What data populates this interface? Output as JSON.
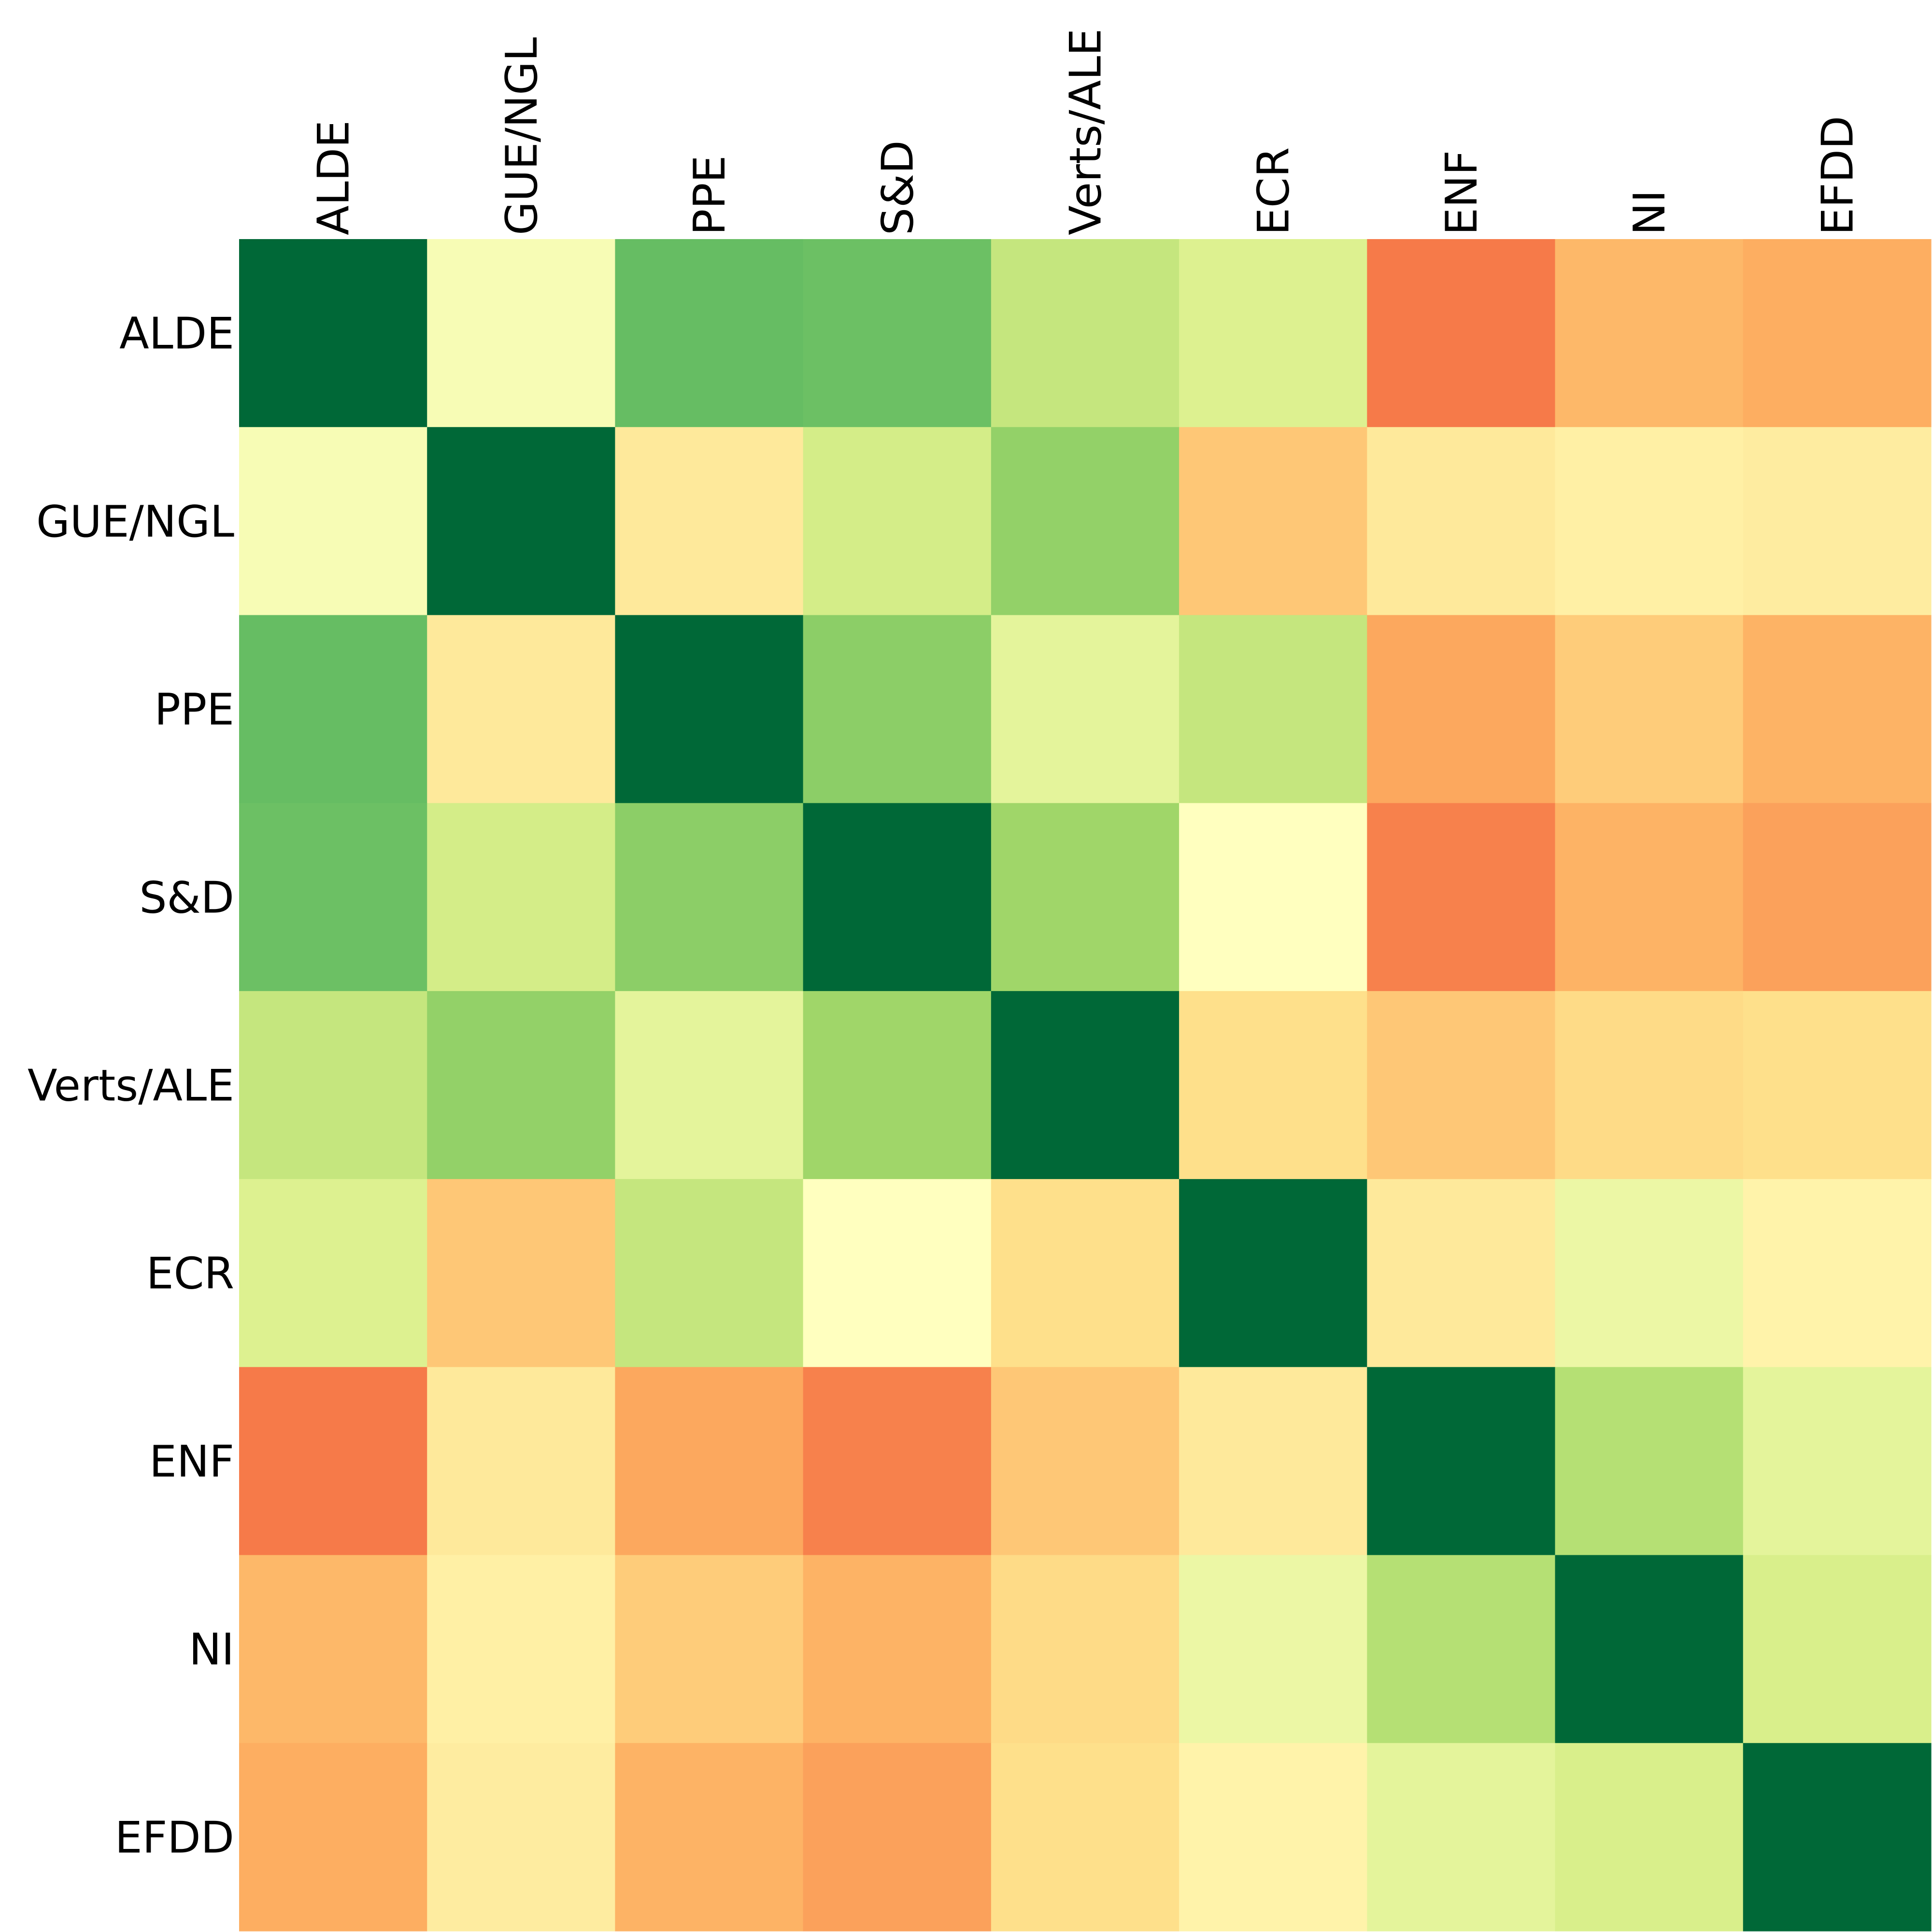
{
  "chart_data": {
    "type": "heatmap",
    "title": "",
    "xlabel": "",
    "ylabel": "",
    "x_labels": [
      "ALDE",
      "GUE/NGL",
      "PPE",
      "S&D",
      "Verts/ALE",
      "ECR",
      "ENF",
      "NI",
      "EFDD"
    ],
    "y_labels": [
      "ALDE",
      "GUE/NGL",
      "PPE",
      "S&D",
      "Verts/ALE",
      "ECR",
      "ENF",
      "NI",
      "EFDD"
    ],
    "colorscale": "RdYlGn",
    "value_range": [
      0,
      1
    ],
    "colorbar": false,
    "values": [
      [
        1.0,
        0.52,
        0.8,
        0.79,
        0.64,
        0.59,
        0.22,
        0.32,
        0.3
      ],
      [
        0.52,
        1.0,
        0.43,
        0.61,
        0.73,
        0.35,
        0.43,
        0.45,
        0.44
      ],
      [
        0.8,
        0.43,
        1.0,
        0.74,
        0.57,
        0.64,
        0.29,
        0.36,
        0.31
      ],
      [
        0.79,
        0.61,
        0.74,
        1.0,
        0.71,
        0.5,
        0.23,
        0.31,
        0.28
      ],
      [
        0.64,
        0.73,
        0.57,
        0.71,
        1.0,
        0.4,
        0.35,
        0.39,
        0.4
      ],
      [
        0.59,
        0.35,
        0.64,
        0.5,
        0.4,
        1.0,
        0.43,
        0.55,
        0.46
      ],
      [
        0.22,
        0.43,
        0.29,
        0.23,
        0.35,
        0.43,
        1.0,
        0.67,
        0.57
      ],
      [
        0.32,
        0.45,
        0.36,
        0.31,
        0.39,
        0.55,
        0.67,
        1.0,
        0.6
      ],
      [
        0.3,
        0.44,
        0.31,
        0.28,
        0.4,
        0.46,
        0.57,
        0.6,
        1.0
      ]
    ]
  }
}
